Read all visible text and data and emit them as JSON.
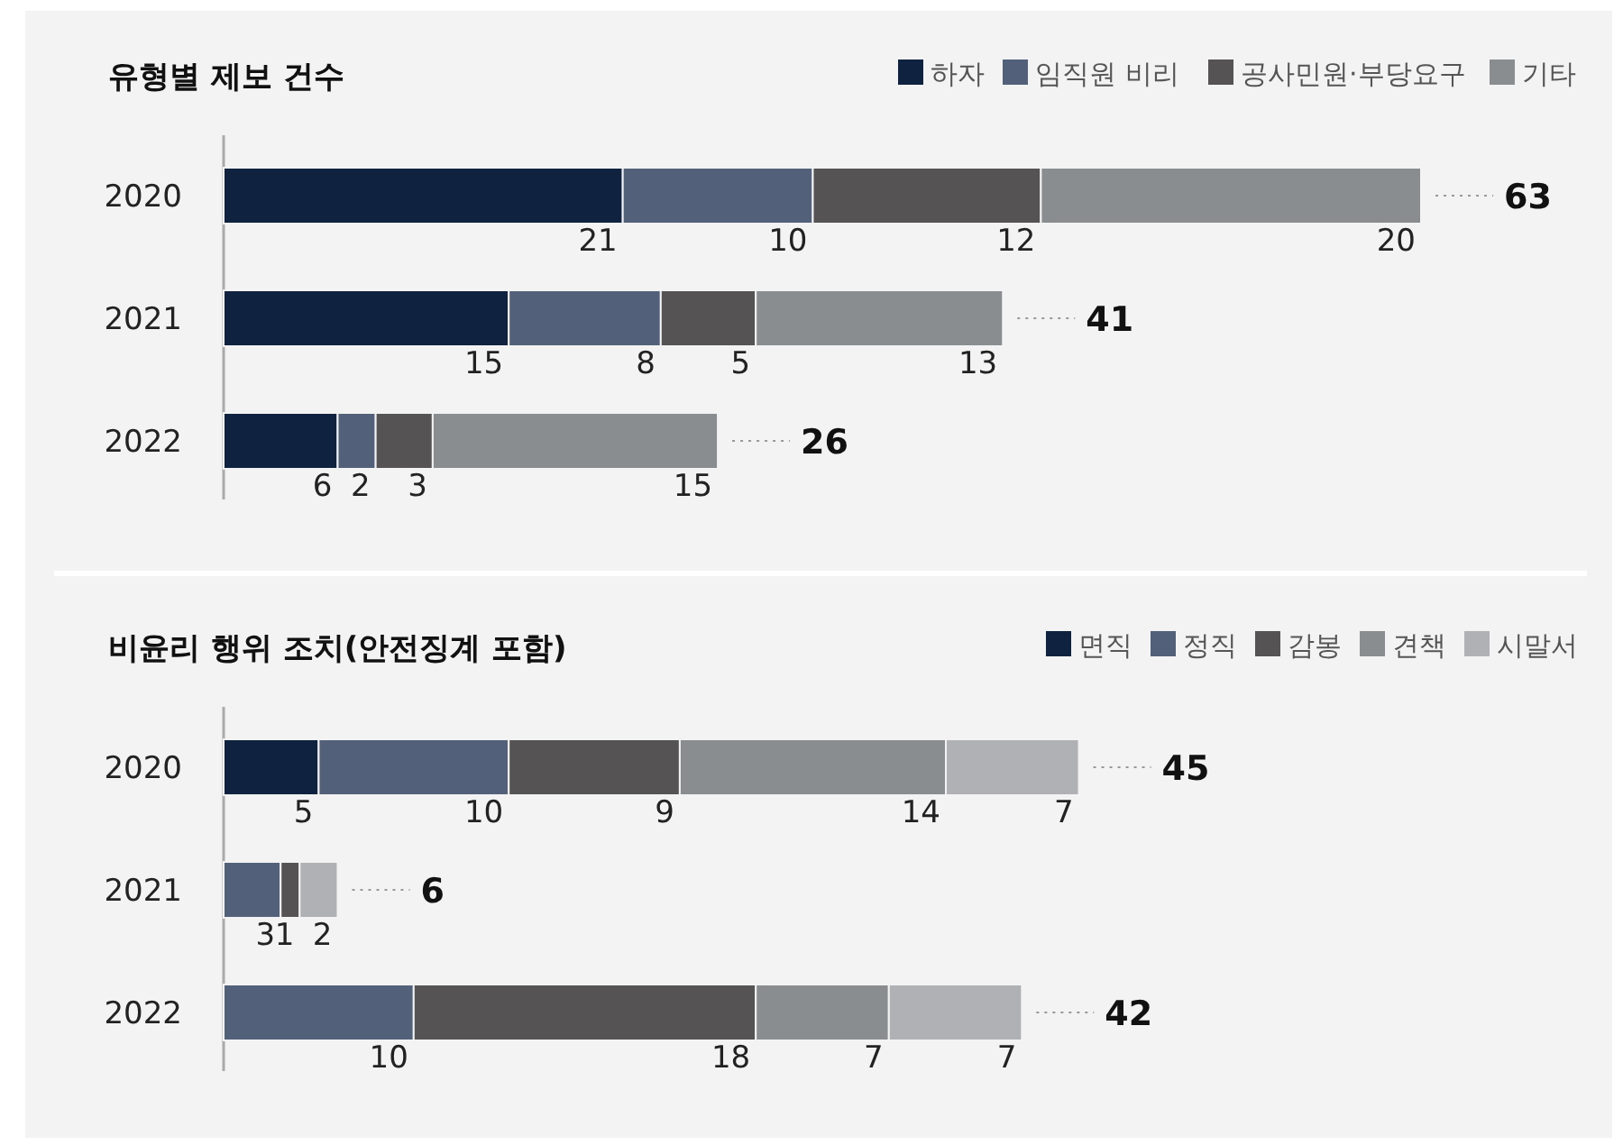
{
  "chart_data": [
    {
      "type": "bar",
      "orientation": "horizontal",
      "stacked": true,
      "title": "유형별 제보 건수",
      "categories": [
        "2020",
        "2021",
        "2022"
      ],
      "legend": "top right",
      "data_labels": true,
      "totals": [
        "63",
        "41",
        "26"
      ],
      "series": [
        {
          "name": "하자",
          "color": "#0f2340",
          "values": [
            21,
            15,
            6
          ]
        },
        {
          "name": "임직원 비리",
          "color": "#526179",
          "values": [
            10,
            8,
            2
          ]
        },
        {
          "name": "공사민원·부당요구",
          "color": "#555353",
          "values": [
            12,
            5,
            3
          ]
        },
        {
          "name": "기타",
          "color": "#8a8d90",
          "values": [
            20,
            13,
            15
          ]
        }
      ]
    },
    {
      "type": "bar",
      "orientation": "horizontal",
      "stacked": true,
      "title": "비윤리 행위 조치(안전징계 포함)",
      "categories": [
        "2020",
        "2021",
        "2022"
      ],
      "legend": "top right",
      "data_labels": true,
      "totals": [
        "45",
        "6",
        "42"
      ],
      "series": [
        {
          "name": "면직",
          "color": "#0f2340",
          "values": [
            5,
            null,
            null
          ]
        },
        {
          "name": "정직",
          "color": "#526179",
          "values": [
            10,
            3,
            10
          ]
        },
        {
          "name": "감봉",
          "color": "#555353",
          "values": [
            9,
            1,
            18
          ]
        },
        {
          "name": "견책",
          "color": "#8a8d90",
          "values": [
            14,
            null,
            7
          ]
        },
        {
          "name": "시말서",
          "color": "#b0b1b4",
          "values": [
            7,
            2,
            7
          ]
        }
      ]
    }
  ]
}
